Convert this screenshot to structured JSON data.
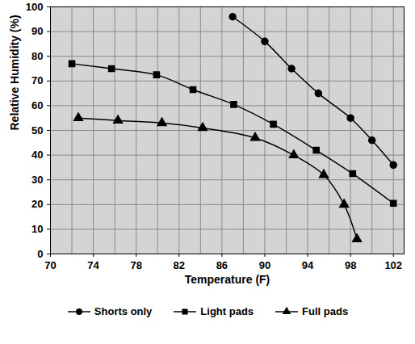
{
  "chart_data": {
    "type": "line",
    "x_label": "Temperature (F)",
    "y_label": "Relative Humidity (%)",
    "xlim": [
      70,
      103
    ],
    "xticks": [
      70,
      74,
      78,
      82,
      86,
      90,
      94,
      98,
      102
    ],
    "ylim": [
      0,
      100
    ],
    "yticks": [
      0,
      10,
      20,
      30,
      40,
      50,
      60,
      70,
      80,
      90,
      100
    ],
    "grid": true,
    "legend": "bottom",
    "series": [
      {
        "name": "Shorts only",
        "color": "#000000",
        "marker": "circle",
        "line_style": "solid",
        "x": [
          87,
          90,
          92.5,
          95,
          98,
          100,
          102
        ],
        "values": [
          96,
          86,
          75,
          65,
          55,
          46,
          36
        ]
      },
      {
        "name": "Light pads",
        "color": "#000000",
        "marker": "square",
        "line_style": "solid",
        "x": [
          72,
          75.7,
          79.9,
          83.3,
          87.1,
          90.8,
          94.8,
          98.2,
          102
        ],
        "values": [
          77,
          75,
          72.5,
          66.5,
          60.5,
          52.5,
          42,
          32.5,
          20.5
        ]
      },
      {
        "name": "Full pads",
        "color": "#000000",
        "marker": "triangle",
        "line_style": "solid",
        "x": [
          72.6,
          76.3,
          80.4,
          84.2,
          89.1,
          92.7,
          95.5,
          97.4,
          98.6
        ],
        "values": [
          55,
          54,
          53,
          51,
          47,
          40,
          32,
          20,
          6
        ]
      }
    ]
  }
}
